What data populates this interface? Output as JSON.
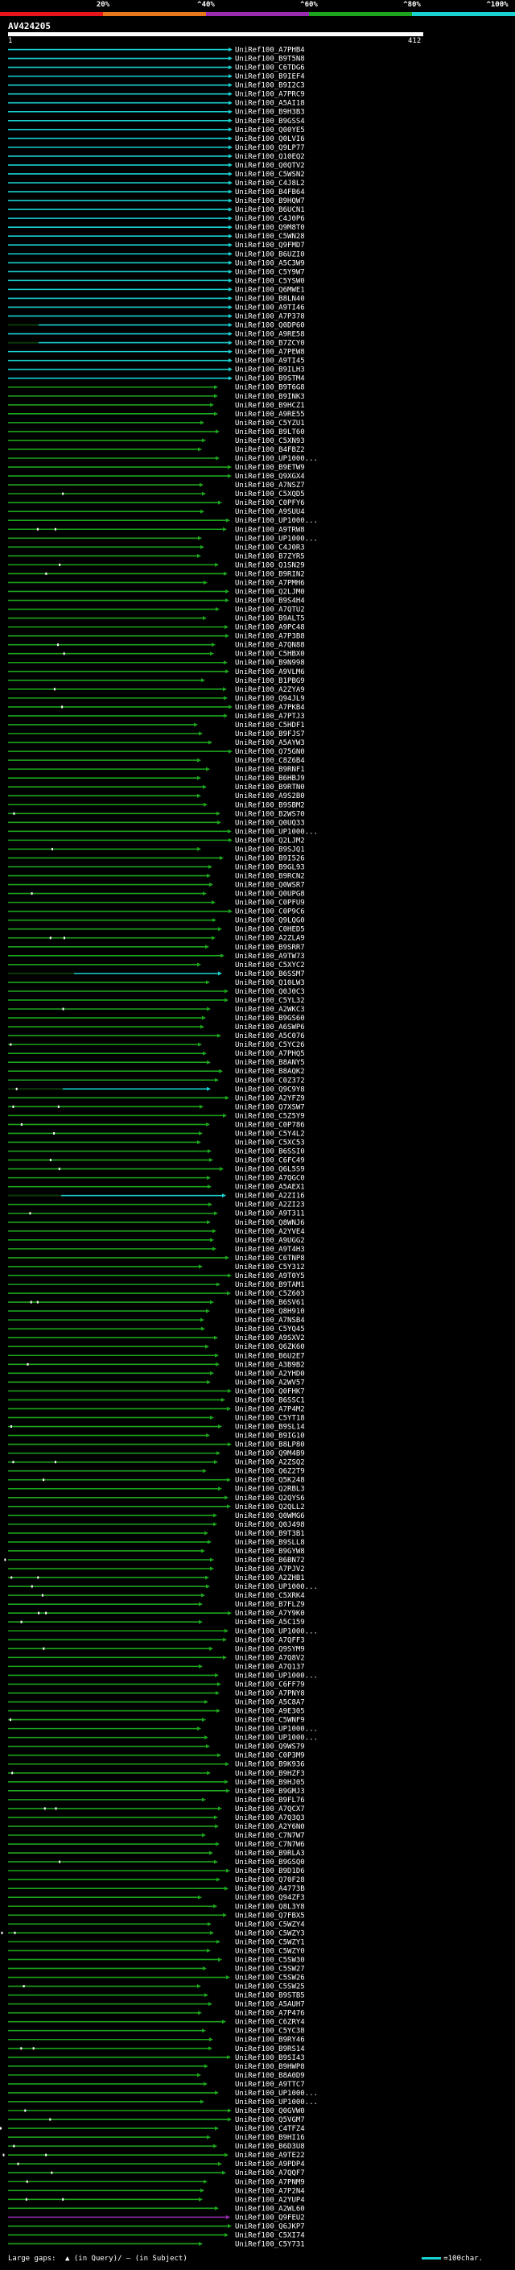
{
  "scale": {
    "segments": [
      {
        "from": 0,
        "to": 20,
        "color": "#e8151d"
      },
      {
        "from": 20,
        "to": 40,
        "color": "#e8771c"
      },
      {
        "from": 40,
        "to": 60,
        "color": "#9a2cb0"
      },
      {
        "from": 60,
        "to": 80,
        "color": "#1da51d"
      },
      {
        "from": 80,
        "to": 100,
        "color": "#1ad1d1"
      }
    ],
    "ticks": [
      {
        "pct": 20,
        "label": "20%"
      },
      {
        "pct": 40,
        "label": "^40%"
      },
      {
        "pct": 60,
        "label": "^60%"
      },
      {
        "pct": 80,
        "label": "^80%"
      },
      {
        "pct": 100,
        "label": "^100%"
      }
    ]
  },
  "query": {
    "name": "AV424205",
    "start": "1",
    "end": "412"
  },
  "colors": {
    "cyan": "#1ad1d1",
    "green": "#1da51d",
    "purple": "#9a2cb0",
    "gap": "#ffffff",
    "dark": "#0a3a0a"
  },
  "hits": {
    "labels": [
      "UniRef100_A7PHB4",
      "UniRef100_B9T5N8",
      "UniRef100_C6TDG6",
      "UniRef100_B9IEF4",
      "UniRef100_B9I2C3",
      "UniRef100_A7PRC9",
      "UniRef100_A5AI18",
      "UniRef100_B9H3B3",
      "UniRef100_B9GSS4",
      "UniRef100_Q00YE5",
      "UniRef100_Q0LVI6",
      "UniRef100_Q9LP77",
      "UniRef100_Q10EQ2",
      "UniRef100_Q0QTV2",
      "UniRef100_C5WSN2",
      "UniRef100_C4J8L2",
      "UniRef100_B4FB64",
      "UniRef100_B9HQW7",
      "UniRef100_B6UCN1",
      "UniRef100_C4J0P6",
      "UniRef100_Q9M8T0",
      "UniRef100_C5WN28",
      "UniRef100_Q9FMD7",
      "UniRef100_B6UZI0",
      "UniRef100_A5C3W9",
      "UniRef100_C5Y9W7",
      "UniRef100_C5YSW0",
      "UniRef100_Q6MWE1",
      "UniRef100_B8LN40",
      "UniRef100_A9TI46",
      "UniRef100_A7P378",
      "UniRef100_Q0DP60",
      "UniRef100_A9RE58",
      "UniRef100_B7ZCY0",
      "UniRef100_A7PEW8",
      "UniRef100_A9TI45",
      "UniRef100_B9ILH3",
      "UniRef100_B9STM4",
      "UniRef100_B9T6G8",
      "UniRef100_B9INK3",
      "UniRef100_B9HCZ1",
      "UniRef100_A9RE55",
      "UniRef100_C5YZU1",
      "UniRef100_B9LT60",
      "UniRef100_C5XN93",
      "UniRef100_B4FBZ2",
      "UniRef100_UP1000...",
      "UniRef100_B9ETW9",
      "UniRef100_Q9XGX4",
      "UniRef100_A7NSZ7",
      "UniRef100_C5XQD5",
      "UniRef100_C0PFY6",
      "UniRef100_A9SUU4",
      "UniRef100_UP1000...",
      "UniRef100_A9TRW8",
      "UniRef100_UP1000...",
      "UniRef100_C4J0R3",
      "UniRef100_B7ZYR5",
      "UniRef100_Q1SN29",
      "UniRef100_B9RIN2",
      "UniRef100_A7PMH6",
      "UniRef100_Q2LJM0",
      "UniRef100_B9S4H4",
      "UniRef100_A7QTU2",
      "UniRef100_B9ALT5",
      "UniRef100_A9PC48",
      "UniRef100_A7P3B8",
      "UniRef100_A7QN88",
      "UniRef100_C5HBX0",
      "UniRef100_B9N998",
      "UniRef100_A9VLM6",
      "UniRef100_B1PBG9",
      "UniRef100_A2ZYA9",
      "UniRef100_Q94JL9",
      "UniRef100_A7PKB4",
      "UniRef100_A7PTJ3",
      "UniRef100_C5HDF1",
      "UniRef100_B9FJS7",
      "UniRef100_A5AYW3",
      "UniRef100_Q75GN0",
      "UniRef100_C8Z6B4",
      "UniRef100_B9RNF1",
      "UniRef100_B6HBJ9",
      "UniRef100_B9RTN0",
      "UniRef100_A9S2B0",
      "UniRef100_B9SBM2",
      "UniRef100_B2WS70",
      "UniRef100_Q0UQ33",
      "UniRef100_UP1000...",
      "UniRef100_Q2LJM2",
      "UniRef100_B9SJQ1",
      "UniRef100_B9I526",
      "UniRef100_B9GL93",
      "UniRef100_B9RCN2",
      "UniRef100_Q0WSR7",
      "UniRef100_Q0UPG8",
      "UniRef100_C0PFU9",
      "UniRef100_C0P9C6",
      "UniRef100_Q9LQG0",
      "UniRef100_C0HED5",
      "UniRef100_A2ZLA9",
      "UniRef100_B9SRR7",
      "UniRef100_A9TW73",
      "UniRef100_C5XYC2",
      "UniRef100_B6SSM7",
      "UniRef100_Q10LW3",
      "UniRef100_Q0J0C3",
      "UniRef100_C5YL32",
      "UniRef100_A2WKC3",
      "UniRef100_B9GS60",
      "UniRef100_A6SWP6",
      "UniRef100_A5C076",
      "UniRef100_C5YC26",
      "UniRef100_A7PHQ5",
      "UniRef100_B8ANY5",
      "UniRef100_B8AQK2",
      "UniRef100_C0Z372",
      "UniRef100_Q9C9Y8",
      "UniRef100_A2YFZ9",
      "UniRef100_Q7XSW7",
      "UniRef100_C5Z5Y9",
      "UniRef100_C0P786",
      "UniRef100_C5Y4L2",
      "UniRef100_C5XC53",
      "UniRef100_B6SSI0",
      "UniRef100_C6FC49",
      "UniRef100_Q6L5S9",
      "UniRef100_A7QGC0",
      "UniRef100_A5AEX1",
      "UniRef100_A2ZI16",
      "UniRef100_A2ZI23",
      "UniRef100_A9T311",
      "UniRef100_Q8WNJ6",
      "UniRef100_A2YVE4",
      "UniRef100_A9UGG2",
      "UniRef100_A9T4H3",
      "UniRef100_C6TNP8",
      "UniRef100_C5Y312",
      "UniRef100_A9T0Y5",
      "UniRef100_B9TAM1",
      "UniRef100_C5Z603",
      "UniRef100_B6SV61",
      "UniRef100_Q8H910",
      "UniRef100_A7NSB4",
      "UniRef100_C5YQ45",
      "UniRef100_A9SXV2",
      "UniRef100_Q6ZK60",
      "UniRef100_B6U2E7",
      "UniRef100_A3B9B2",
      "UniRef100_A2YHD0",
      "UniRef100_A2WV57",
      "UniRef100_Q0FHK7",
      "UniRef100_B6SSC1",
      "UniRef100_A7P4M2",
      "UniRef100_C5YT18",
      "UniRef100_B9SL14",
      "UniRef100_B9IG10",
      "UniRef100_B8LP80",
      "UniRef100_Q9M4B9",
      "UniRef100_A2ZSQ2",
      "UniRef100_Q6Z2T9",
      "UniRef100_Q5K248",
      "UniRef100_Q2RBL3",
      "UniRef100_Q2QYS6",
      "UniRef100_Q2QLL2",
      "UniRef100_Q0WMG6",
      "UniRef100_Q0J498",
      "UniRef100_B9T3B1",
      "UniRef100_B9SLL8",
      "UniRef100_B9GYW8",
      "UniRef100_B6BN72",
      "UniRef100_A7PJV2",
      "UniRef100_A2ZHB1",
      "UniRef100_UP1000...",
      "UniRef100_C5XRK4",
      "UniRef100_B7FLZ9",
      "UniRef100_A7Y9K0",
      "UniRef100_A5C159",
      "UniRef100_UP1000...",
      "UniRef100_A7QFF3",
      "UniRef100_Q9SYM9",
      "UniRef100_A7Q8V2",
      "UniRef100_A7Q137",
      "UniRef100_UP1000...",
      "UniRef100_C6FF79",
      "UniRef100_A7PNY8",
      "UniRef100_A5C8A7",
      "UniRef100_A9E305",
      "UniRef100_C5WNF9",
      "UniRef100_UP1000...",
      "UniRef100_UP1000...",
      "UniRef100_Q9WS79",
      "UniRef100_C0P3M9",
      "UniRef100_B9K936",
      "UniRef100_B9HZF3",
      "UniRef100_B9HJ05",
      "UniRef100_B9GMJ3",
      "UniRef100_B9FL76",
      "UniRef100_A7QCX7",
      "UniRef100_A7Q3Q3",
      "UniRef100_A2Y6N0",
      "UniRef100_C7N7W7",
      "UniRef100_C7N7W6",
      "UniRef100_B9RLA3",
      "UniRef100_B9GSQ0",
      "UniRef100_B9D1D6",
      "UniRef100_Q70F28",
      "UniRef100_A4773B",
      "UniRef100_Q94ZF3",
      "UniRef100_Q8L3Y8",
      "UniRef100_Q7FBX5",
      "UniRef100_C5WZY4",
      "UniRef100_C5WZY3",
      "UniRef100_C5WZY1",
      "UniRef100_C5WZY0",
      "UniRef100_C5SW30",
      "UniRef100_C5SW27",
      "UniRef100_C5SW26",
      "UniRef100_C5SW25",
      "UniRef100_B9STB5",
      "UniRef100_A5AUH7",
      "UniRef100_A7P476",
      "UniRef100_C6ZRY4",
      "UniRef100_C5YC38",
      "UniRef100_B9RY46",
      "UniRef100_B9RS14",
      "UniRef100_B9SI43",
      "UniRef100_B9HWP8",
      "UniRef100_B8A0D9",
      "UniRef100_A9TTC7",
      "UniRef100_UP1000...",
      "UniRef100_UP1000...",
      "UniRef100_Q0GVW0",
      "UniRef100_Q5VGM7",
      "UniRef100_C4TFZ4",
      "UniRef100_B9HI16",
      "UniRef100_B6D3U8",
      "UniRef100_A9TE22",
      "UniRef100_A9PDP4",
      "UniRef100_A7QQF7",
      "UniRef100_A7PNM9",
      "UniRef100_A7P2N4",
      "UniRef100_A2YUP4",
      "UniRef100_A2WL60",
      "UniRef100_Q9FEU2",
      "UniRef100_Q6JKP7",
      "UniRef100_C5XI74",
      "UniRef100_C5Y731"
    ]
  },
  "legend": {
    "large_gaps": "Large gaps:",
    "in_query": "(in Query)",
    "in_subject": "(in Subject)",
    "scale_text": "=100char."
  }
}
